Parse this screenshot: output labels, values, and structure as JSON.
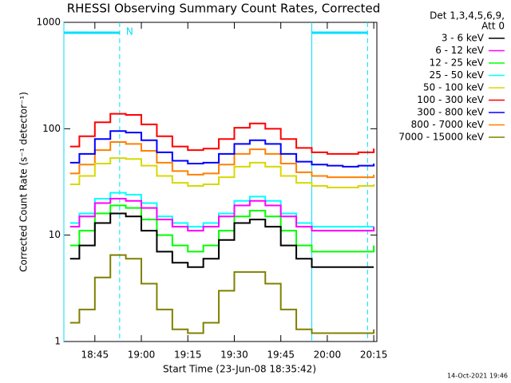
{
  "chart_data": {
    "type": "line",
    "title": "RHESSI Observing Summary Count Rates, Corrected",
    "xlabel": "Start Time (23-Jun-08 18:35:42)",
    "ylabel": "Corrected Count Rate (s⁻¹ detector⁻¹)",
    "legend_header": [
      "Det 1,3,4,5,6,9,",
      "Att 0"
    ],
    "footer": "14-Oct-2021 19:46",
    "log_y": true,
    "step": true,
    "xlim": [
      "18:35",
      "20:16"
    ],
    "xticks": [
      "18:45",
      "19:00",
      "19:15",
      "19:30",
      "19:45",
      "20:00",
      "20:15"
    ],
    "ylim": [
      1,
      1000
    ],
    "yticks": [
      1,
      10,
      100,
      1000
    ],
    "annotations": [
      {
        "label": "N",
        "start": "18:35",
        "end": "18:53",
        "color": "#00e0ff"
      },
      {
        "start": "19:55",
        "end": "20:13",
        "color": "#00e0ff"
      }
    ],
    "x": [
      "18:37",
      "18:40",
      "18:45",
      "18:50",
      "18:55",
      "19:00",
      "19:05",
      "19:10",
      "19:15",
      "19:20",
      "19:25",
      "19:30",
      "19:35",
      "19:40",
      "19:45",
      "19:50",
      "19:55",
      "20:00",
      "20:05",
      "20:10",
      "20:15"
    ],
    "series": [
      {
        "name": "3 - 6 keV",
        "color": "#000000",
        "values": [
          6,
          8,
          13,
          16,
          15,
          11,
          7,
          5.5,
          5,
          6,
          9,
          13,
          14,
          12,
          8,
          6,
          5,
          5,
          5,
          5,
          5
        ]
      },
      {
        "name": "6 - 12 keV",
        "color": "#ff00ff",
        "values": [
          12,
          15,
          20,
          22,
          21,
          18,
          14,
          12,
          11,
          12,
          15,
          19,
          21,
          19,
          15,
          12,
          11,
          11,
          11,
          11,
          12
        ]
      },
      {
        "name": "12 - 25 keV",
        "color": "#00ff00",
        "values": [
          8,
          11,
          16,
          19,
          18,
          14,
          10,
          8,
          7,
          8,
          11,
          15,
          17,
          15,
          11,
          8,
          7,
          7,
          7,
          7,
          8
        ]
      },
      {
        "name": "25 - 50 keV",
        "color": "#00ffff",
        "values": [
          13,
          16,
          22,
          25,
          24,
          20,
          15,
          13,
          12,
          13,
          16,
          21,
          23,
          21,
          16,
          13,
          12,
          12,
          12,
          12,
          12
        ]
      },
      {
        "name": "50 - 100 keV",
        "color": "#d8d800",
        "values": [
          30,
          36,
          47,
          53,
          52,
          45,
          36,
          31,
          29,
          30,
          35,
          44,
          48,
          44,
          36,
          31,
          29,
          28,
          28,
          29,
          30
        ]
      },
      {
        "name": "100 - 300 keV",
        "color": "#ff0000",
        "values": [
          68,
          85,
          115,
          138,
          135,
          110,
          85,
          68,
          63,
          65,
          80,
          102,
          112,
          100,
          80,
          66,
          60,
          58,
          58,
          60,
          65
        ]
      },
      {
        "name": "300 - 800 keV",
        "color": "#0000ff",
        "values": [
          48,
          58,
          80,
          95,
          92,
          78,
          60,
          50,
          47,
          48,
          58,
          72,
          78,
          72,
          58,
          49,
          46,
          45,
          44,
          45,
          47
        ]
      },
      {
        "name": "800 - 7000 keV",
        "color": "#ff8000",
        "values": [
          38,
          46,
          63,
          75,
          72,
          62,
          48,
          40,
          37,
          38,
          46,
          58,
          64,
          58,
          47,
          39,
          36,
          35,
          35,
          35,
          37
        ]
      },
      {
        "name": "7000 - 15000 keV",
        "color": "#808000",
        "values": [
          1.5,
          2,
          4,
          6.5,
          6,
          3.5,
          2,
          1.3,
          1.2,
          1.5,
          3,
          4.5,
          4.5,
          3.5,
          2,
          1.3,
          1.2,
          1.2,
          1.2,
          1.2,
          1.3
        ]
      }
    ]
  }
}
